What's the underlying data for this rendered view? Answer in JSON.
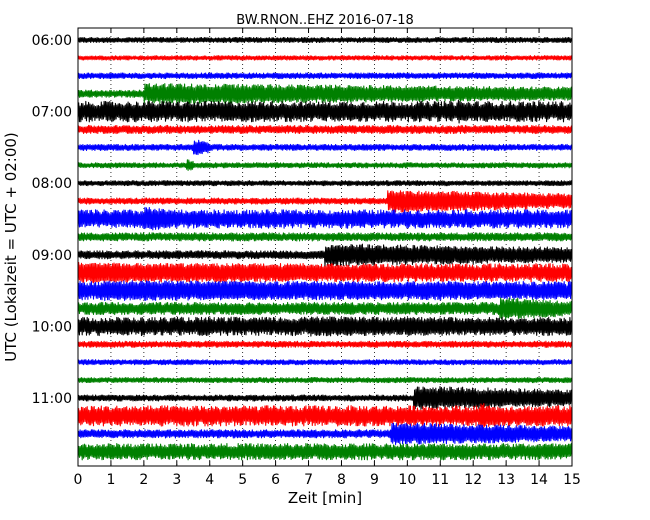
{
  "chart_data": {
    "type": "line",
    "title": "BW.RNON..EHZ 2016-07-18",
    "xlabel": "Zeit  [min]",
    "ylabel": "UTC (Lokalzeit = UTC + 02:00)",
    "xlim": [
      0,
      15
    ],
    "x_ticks": [
      "0",
      "1",
      "2",
      "3",
      "4",
      "5",
      "6",
      "7",
      "8",
      "9",
      "10",
      "11",
      "12",
      "13",
      "14",
      "15"
    ],
    "y_ticks": [
      "06:00",
      "07:00",
      "08:00",
      "09:00",
      "10:00",
      "11:00"
    ],
    "grid": true,
    "trace_colors": [
      "#000000",
      "#ff0000",
      "#0000ff",
      "#008000"
    ],
    "traces": [
      {
        "start": "06:00",
        "base": 0.25,
        "events": []
      },
      {
        "start": "06:15",
        "base": 0.22,
        "events": []
      },
      {
        "start": "06:30",
        "base": 0.28,
        "events": []
      },
      {
        "start": "06:45",
        "base": 0.35,
        "events": [
          {
            "t0": 2.0,
            "t1": 15.0,
            "amp": 1.0
          }
        ]
      },
      {
        "start": "07:00",
        "base": 1.0,
        "events": [
          {
            "t0": 11.5,
            "t1": 11.7,
            "amp": 1.3
          }
        ]
      },
      {
        "start": "07:15",
        "base": 0.4,
        "events": []
      },
      {
        "start": "07:30",
        "base": 0.3,
        "events": [
          {
            "t0": 3.5,
            "t1": 4.0,
            "amp": 0.8
          }
        ]
      },
      {
        "start": "07:45",
        "base": 0.25,
        "events": [
          {
            "t0": 3.3,
            "t1": 3.5,
            "amp": 0.6
          }
        ]
      },
      {
        "start": "08:00",
        "base": 0.25,
        "events": []
      },
      {
        "start": "08:15",
        "base": 0.3,
        "events": [
          {
            "t0": 9.4,
            "t1": 15.0,
            "amp": 1.1
          }
        ]
      },
      {
        "start": "08:30",
        "base": 0.9,
        "events": [
          {
            "t0": 2.0,
            "t1": 3.0,
            "amp": 1.2
          }
        ]
      },
      {
        "start": "08:45",
        "base": 0.4,
        "events": []
      },
      {
        "start": "09:00",
        "base": 0.4,
        "events": [
          {
            "t0": 7.5,
            "t1": 15.0,
            "amp": 1.1
          }
        ]
      },
      {
        "start": "09:15",
        "base": 0.9,
        "events": [
          {
            "t0": 0.0,
            "t1": 10.0,
            "amp": 1.0
          }
        ]
      },
      {
        "start": "09:30",
        "base": 0.9,
        "events": [
          {
            "t0": 0.7,
            "t1": 15.0,
            "amp": 1.0
          }
        ]
      },
      {
        "start": "09:45",
        "base": 0.6,
        "events": [
          {
            "t0": 12.8,
            "t1": 15.0,
            "amp": 1.1
          }
        ]
      },
      {
        "start": "10:00",
        "base": 0.9,
        "events": [
          {
            "t0": 7.0,
            "t1": 13.2,
            "amp": 1.0
          }
        ]
      },
      {
        "start": "10:15",
        "base": 0.3,
        "events": []
      },
      {
        "start": "10:30",
        "base": 0.25,
        "events": []
      },
      {
        "start": "10:45",
        "base": 0.25,
        "events": []
      },
      {
        "start": "11:00",
        "base": 0.3,
        "events": [
          {
            "t0": 10.2,
            "t1": 15.0,
            "amp": 1.2
          }
        ]
      },
      {
        "start": "11:15",
        "base": 1.0,
        "events": [
          {
            "t0": 12.2,
            "t1": 12.6,
            "amp": 1.4
          }
        ]
      },
      {
        "start": "11:30",
        "base": 0.4,
        "events": [
          {
            "t0": 9.5,
            "t1": 15.0,
            "amp": 1.1
          }
        ]
      },
      {
        "start": "11:45",
        "base": 0.8,
        "events": []
      }
    ]
  }
}
